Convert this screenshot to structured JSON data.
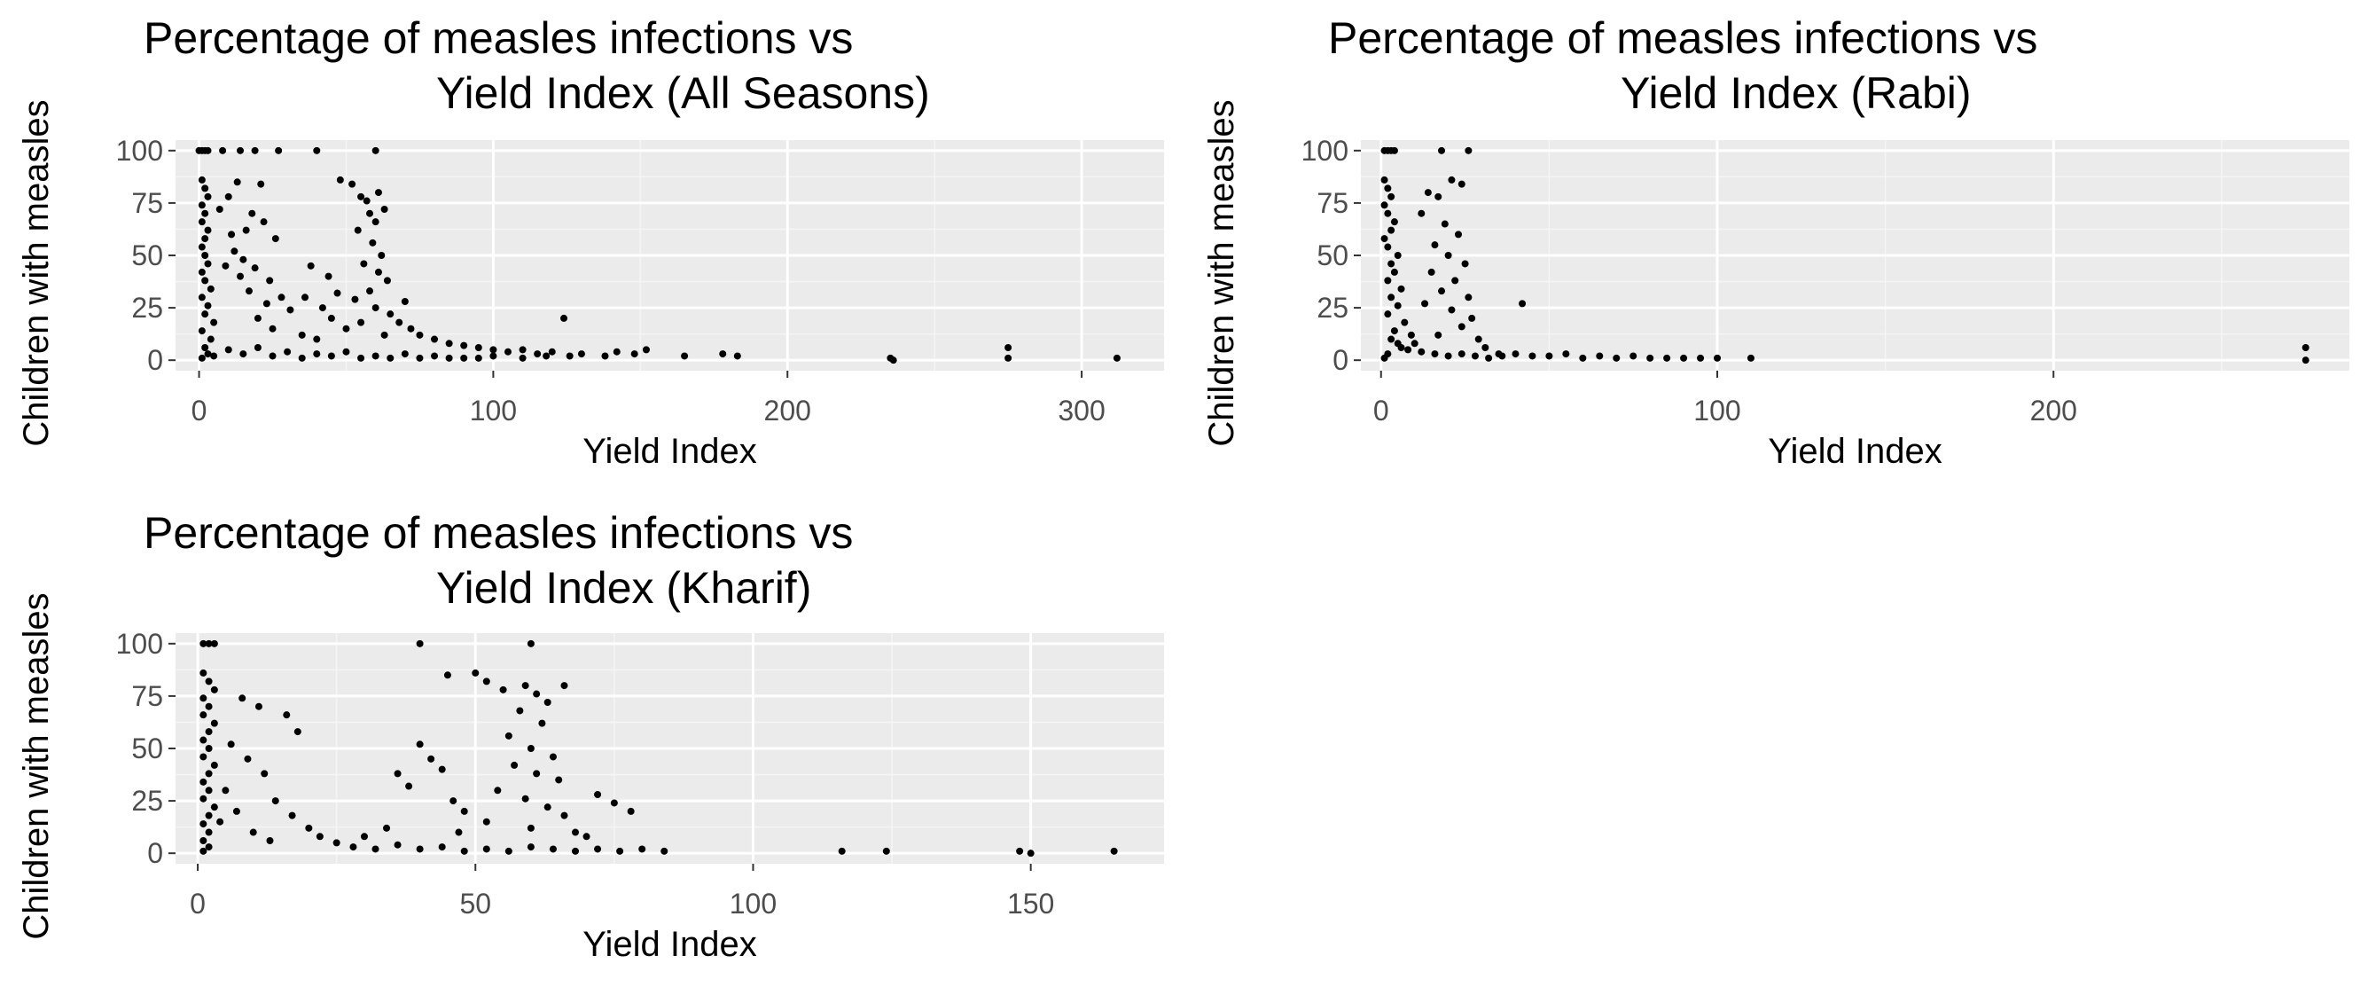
{
  "colors": {
    "panel_background": "#ebebeb",
    "grid_major": "#ffffff",
    "grid_minor": "#f5f5f5",
    "tick_text": "#4d4d4d",
    "point": "#000000"
  },
  "chart_data": [
    {
      "type": "scatter",
      "title_lines": [
        "Percentage of measles infections vs",
        "Yield Index (All Seasons)"
      ],
      "xlabel": "Yield Index",
      "ylabel": "Children with measles",
      "xlim": [
        -8,
        328
      ],
      "ylim": [
        -5,
        105
      ],
      "xticks": [
        0,
        100,
        200,
        300
      ],
      "xtick_labels": [
        "0",
        "100",
        "200",
        "300"
      ],
      "yticks": [
        0,
        25,
        50,
        75,
        100
      ],
      "ytick_labels": [
        "0",
        "25",
        "50",
        "75",
        "100"
      ],
      "grid": true,
      "points": [
        [
          0,
          100
        ],
        [
          1,
          100
        ],
        [
          2,
          100
        ],
        [
          3,
          100
        ],
        [
          8,
          100
        ],
        [
          14,
          100
        ],
        [
          19,
          100
        ],
        [
          27,
          100
        ],
        [
          40,
          100
        ],
        [
          60,
          100
        ],
        [
          1,
          86
        ],
        [
          2,
          82
        ],
        [
          3,
          78
        ],
        [
          1,
          74
        ],
        [
          2,
          70
        ],
        [
          1,
          66
        ],
        [
          3,
          62
        ],
        [
          2,
          58
        ],
        [
          1,
          54
        ],
        [
          2,
          50
        ],
        [
          3,
          46
        ],
        [
          1,
          42
        ],
        [
          2,
          38
        ],
        [
          4,
          34
        ],
        [
          1,
          30
        ],
        [
          3,
          26
        ],
        [
          2,
          22
        ],
        [
          5,
          18
        ],
        [
          1,
          14
        ],
        [
          4,
          10
        ],
        [
          2,
          6
        ],
        [
          3,
          3
        ],
        [
          1,
          1
        ],
        [
          10,
          78
        ],
        [
          13,
          85
        ],
        [
          18,
          70
        ],
        [
          21,
          84
        ],
        [
          16,
          62
        ],
        [
          22,
          66
        ],
        [
          26,
          58
        ],
        [
          12,
          52
        ],
        [
          15,
          48
        ],
        [
          19,
          44
        ],
        [
          24,
          38
        ],
        [
          28,
          30
        ],
        [
          31,
          24
        ],
        [
          20,
          20
        ],
        [
          25,
          15
        ],
        [
          35,
          12
        ],
        [
          40,
          10
        ],
        [
          17,
          33
        ],
        [
          23,
          27
        ],
        [
          14,
          40
        ],
        [
          11,
          60
        ],
        [
          9,
          45
        ],
        [
          7,
          72
        ],
        [
          48,
          86
        ],
        [
          52,
          84
        ],
        [
          55,
          78
        ],
        [
          57,
          76
        ],
        [
          61,
          80
        ],
        [
          58,
          70
        ],
        [
          63,
          72
        ],
        [
          60,
          66
        ],
        [
          54,
          62
        ],
        [
          59,
          56
        ],
        [
          62,
          50
        ],
        [
          56,
          46
        ],
        [
          61,
          42
        ],
        [
          64,
          38
        ],
        [
          58,
          33
        ],
        [
          53,
          29
        ],
        [
          60,
          25
        ],
        [
          65,
          22
        ],
        [
          55,
          18
        ],
        [
          50,
          15
        ],
        [
          63,
          12
        ],
        [
          45,
          20
        ],
        [
          42,
          25
        ],
        [
          47,
          32
        ],
        [
          44,
          40
        ],
        [
          38,
          45
        ],
        [
          36,
          30
        ],
        [
          70,
          28
        ],
        [
          68,
          18
        ],
        [
          72,
          15
        ],
        [
          75,
          12
        ],
        [
          80,
          10
        ],
        [
          85,
          8
        ],
        [
          90,
          7
        ],
        [
          95,
          6
        ],
        [
          100,
          5
        ],
        [
          105,
          4
        ],
        [
          110,
          5
        ],
        [
          115,
          3
        ],
        [
          120,
          4
        ],
        [
          124,
          20
        ],
        [
          126,
          2
        ],
        [
          130,
          3
        ],
        [
          138,
          2
        ],
        [
          142,
          4
        ],
        [
          148,
          3
        ],
        [
          152,
          5
        ],
        [
          165,
          2
        ],
        [
          178,
          3
        ],
        [
          183,
          2
        ],
        [
          235,
          1
        ],
        [
          236,
          0
        ],
        [
          275,
          6
        ],
        [
          275,
          1
        ],
        [
          312,
          1
        ],
        [
          10,
          5
        ],
        [
          20,
          6
        ],
        [
          30,
          4
        ],
        [
          40,
          3
        ],
        [
          50,
          4
        ],
        [
          60,
          2
        ],
        [
          70,
          3
        ],
        [
          80,
          2
        ],
        [
          90,
          1
        ],
        [
          100,
          2
        ],
        [
          110,
          1
        ],
        [
          118,
          2
        ],
        [
          5,
          2
        ],
        [
          15,
          3
        ],
        [
          25,
          2
        ],
        [
          35,
          1
        ],
        [
          45,
          2
        ],
        [
          55,
          1
        ],
        [
          65,
          1
        ],
        [
          75,
          1
        ],
        [
          85,
          1
        ],
        [
          95,
          1
        ]
      ]
    },
    {
      "type": "scatter",
      "title_lines": [
        "Percentage of measles infections vs",
        "Yield Index (Rabi)"
      ],
      "xlabel": "Yield Index",
      "ylabel": "Children with measles",
      "xlim": [
        -6,
        288
      ],
      "ylim": [
        -5,
        105
      ],
      "xticks": [
        0,
        100,
        200
      ],
      "xtick_labels": [
        "0",
        "100",
        "200"
      ],
      "yticks": [
        0,
        25,
        50,
        75,
        100
      ],
      "ytick_labels": [
        "0",
        "25",
        "50",
        "75",
        "100"
      ],
      "grid": true,
      "points": [
        [
          1,
          100
        ],
        [
          2,
          100
        ],
        [
          3,
          100
        ],
        [
          4,
          100
        ],
        [
          18,
          100
        ],
        [
          26,
          100
        ],
        [
          1,
          86
        ],
        [
          2,
          82
        ],
        [
          3,
          78
        ],
        [
          1,
          74
        ],
        [
          2,
          70
        ],
        [
          4,
          66
        ],
        [
          3,
          62
        ],
        [
          1,
          58
        ],
        [
          2,
          54
        ],
        [
          5,
          50
        ],
        [
          3,
          46
        ],
        [
          4,
          42
        ],
        [
          2,
          38
        ],
        [
          6,
          34
        ],
        [
          3,
          30
        ],
        [
          5,
          26
        ],
        [
          2,
          22
        ],
        [
          7,
          18
        ],
        [
          4,
          14
        ],
        [
          3,
          10
        ],
        [
          6,
          6
        ],
        [
          2,
          3
        ],
        [
          1,
          1
        ],
        [
          14,
          80
        ],
        [
          17,
          78
        ],
        [
          21,
          86
        ],
        [
          24,
          84
        ],
        [
          12,
          70
        ],
        [
          19,
          65
        ],
        [
          23,
          60
        ],
        [
          16,
          55
        ],
        [
          20,
          50
        ],
        [
          25,
          46
        ],
        [
          15,
          42
        ],
        [
          22,
          38
        ],
        [
          18,
          33
        ],
        [
          26,
          30
        ],
        [
          13,
          27
        ],
        [
          21,
          24
        ],
        [
          27,
          20
        ],
        [
          24,
          16
        ],
        [
          17,
          12
        ],
        [
          10,
          8
        ],
        [
          29,
          10
        ],
        [
          31,
          6
        ],
        [
          35,
          3
        ],
        [
          42,
          27
        ],
        [
          40,
          3
        ],
        [
          45,
          2
        ],
        [
          50,
          2
        ],
        [
          55,
          3
        ],
        [
          60,
          1
        ],
        [
          65,
          2
        ],
        [
          70,
          1
        ],
        [
          75,
          2
        ],
        [
          80,
          1
        ],
        [
          85,
          1
        ],
        [
          90,
          1
        ],
        [
          95,
          1
        ],
        [
          100,
          1
        ],
        [
          110,
          1
        ],
        [
          275,
          6
        ],
        [
          275,
          0
        ],
        [
          8,
          5
        ],
        [
          12,
          4
        ],
        [
          16,
          3
        ],
        [
          20,
          2
        ],
        [
          24,
          3
        ],
        [
          28,
          2
        ],
        [
          32,
          1
        ],
        [
          36,
          2
        ],
        [
          5,
          8
        ],
        [
          9,
          12
        ]
      ]
    },
    {
      "type": "scatter",
      "title_lines": [
        "Percentage of measles infections vs",
        "Yield Index (Kharif)"
      ],
      "xlabel": "Yield Index",
      "ylabel": "Children with measles",
      "xlim": [
        -4,
        174
      ],
      "ylim": [
        -5,
        105
      ],
      "xticks": [
        0,
        50,
        100,
        150
      ],
      "xtick_labels": [
        "0",
        "50",
        "100",
        "150"
      ],
      "yticks": [
        0,
        25,
        50,
        75,
        100
      ],
      "ytick_labels": [
        "0",
        "25",
        "50",
        "75",
        "100"
      ],
      "grid": true,
      "points": [
        [
          1,
          100
        ],
        [
          2,
          100
        ],
        [
          3,
          100
        ],
        [
          40,
          100
        ],
        [
          60,
          100
        ],
        [
          1,
          86
        ],
        [
          2,
          82
        ],
        [
          3,
          78
        ],
        [
          1,
          74
        ],
        [
          2,
          70
        ],
        [
          1,
          66
        ],
        [
          3,
          62
        ],
        [
          2,
          58
        ],
        [
          1,
          54
        ],
        [
          2,
          50
        ],
        [
          1,
          46
        ],
        [
          3,
          42
        ],
        [
          2,
          38
        ],
        [
          1,
          34
        ],
        [
          2,
          30
        ],
        [
          1,
          26
        ],
        [
          3,
          22
        ],
        [
          2,
          18
        ],
        [
          1,
          14
        ],
        [
          2,
          10
        ],
        [
          1,
          6
        ],
        [
          2,
          3
        ],
        [
          1,
          1
        ],
        [
          8,
          74
        ],
        [
          11,
          70
        ],
        [
          16,
          66
        ],
        [
          18,
          58
        ],
        [
          6,
          52
        ],
        [
          9,
          45
        ],
        [
          12,
          38
        ],
        [
          5,
          30
        ],
        [
          14,
          25
        ],
        [
          7,
          20
        ],
        [
          17,
          18
        ],
        [
          20,
          12
        ],
        [
          22,
          8
        ],
        [
          25,
          5
        ],
        [
          4,
          15
        ],
        [
          10,
          10
        ],
        [
          13,
          6
        ],
        [
          45,
          85
        ],
        [
          50,
          86
        ],
        [
          52,
          82
        ],
        [
          55,
          78
        ],
        [
          59,
          80
        ],
        [
          61,
          76
        ],
        [
          63,
          72
        ],
        [
          66,
          80
        ],
        [
          58,
          68
        ],
        [
          62,
          62
        ],
        [
          56,
          56
        ],
        [
          60,
          50
        ],
        [
          64,
          46
        ],
        [
          57,
          42
        ],
        [
          61,
          38
        ],
        [
          65,
          35
        ],
        [
          54,
          30
        ],
        [
          59,
          26
        ],
        [
          63,
          22
        ],
        [
          66,
          18
        ],
        [
          52,
          15
        ],
        [
          60,
          12
        ],
        [
          68,
          10
        ],
        [
          70,
          8
        ],
        [
          72,
          28
        ],
        [
          75,
          24
        ],
        [
          78,
          20
        ],
        [
          40,
          52
        ],
        [
          42,
          45
        ],
        [
          44,
          40
        ],
        [
          36,
          38
        ],
        [
          38,
          32
        ],
        [
          46,
          25
        ],
        [
          48,
          20
        ],
        [
          47,
          10
        ],
        [
          34,
          12
        ],
        [
          30,
          8
        ],
        [
          28,
          3
        ],
        [
          32,
          2
        ],
        [
          36,
          4
        ],
        [
          40,
          2
        ],
        [
          44,
          3
        ],
        [
          48,
          1
        ],
        [
          52,
          2
        ],
        [
          56,
          1
        ],
        [
          60,
          3
        ],
        [
          64,
          2
        ],
        [
          68,
          1
        ],
        [
          72,
          2
        ],
        [
          76,
          1
        ],
        [
          80,
          2
        ],
        [
          84,
          1
        ],
        [
          116,
          1
        ],
        [
          124,
          1
        ],
        [
          148,
          1
        ],
        [
          150,
          0
        ],
        [
          165,
          1
        ]
      ]
    }
  ]
}
